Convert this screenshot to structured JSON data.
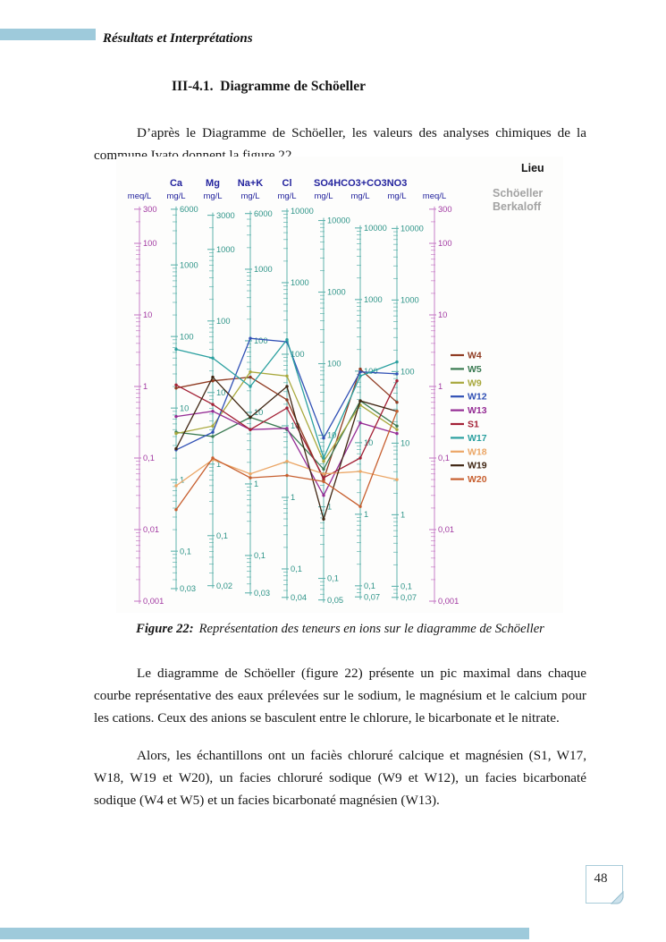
{
  "page": {
    "header_title": "Résultats et Interprétations",
    "section_heading": "III-4.1.  Diagramme de Schöeller",
    "para1": "D’après le Diagramme de Schöeller, les valeurs des analyses chimiques de la commune Ivato donnent la figure 22.",
    "caption_label": "Figure 22:",
    "caption_text": "Représentation des teneurs en ions sur le diagramme de Schöeller",
    "para2": "Le diagramme de Schöeller (figure 22) présente un pic maximal dans chaque courbe représentative des eaux prélevées sur le sodium, le magnésium et le calcium pour les cations. Ceux des anions se basculent entre le chlorure, le bicarbonate et le nitrate.",
    "para3": "Alors, les échantillons ont un faciès  chloruré calcique et magnésien (S1, W17, W18, W19 et W20), un facies chloruré sodique (W9 et W12), un facies bicarbonaté sodique (W4 et W5) et un facies bicarbonaté magnésien (W13).",
    "page_number": "48",
    "accent_color": "#9ecadb"
  },
  "chart_data": {
    "type": "line",
    "y_scale": "log",
    "title": "",
    "legend_title": "Lieu",
    "watermark_lines": [
      "Schöeller",
      "Berkaloff"
    ],
    "common_unit": "meq/L",
    "ylim_meq": [
      0.001,
      300
    ],
    "grid": false,
    "legend_position": "right",
    "colors": {
      "header": "#24249e",
      "ion_axis": "#5fb3ad",
      "tick_label": "#2e9488",
      "meq_axis": "#c77ec7",
      "meq_label": "#a23aa2",
      "legend_title": "#141414",
      "watermark": "#a3a3a3"
    },
    "axes": [
      {
        "header": "",
        "unit": "meq/L",
        "kind": "meq",
        "eq_weight": 1,
        "tick_values": [
          300,
          100,
          10,
          1,
          0.1,
          0.01,
          0.001
        ],
        "tick_labels": [
          "300",
          "100",
          "10",
          "1",
          "0,1",
          "0,01",
          "0,001"
        ]
      },
      {
        "header": "Ca",
        "unit": "mg/L",
        "kind": "ion",
        "eq_weight": 20.04,
        "tick_values": [
          6000,
          1000,
          100,
          10,
          1,
          0.1,
          0.03
        ],
        "tick_labels": [
          "6000",
          "1000",
          "100",
          "10",
          "1",
          "0,1",
          "0,03"
        ]
      },
      {
        "header": "Mg",
        "unit": "mg/L",
        "kind": "ion",
        "eq_weight": 12.15,
        "tick_values": [
          3000,
          1000,
          100,
          10,
          1,
          0.1,
          0.02
        ],
        "tick_labels": [
          "3000",
          "1000",
          "100",
          "10",
          "1",
          "0,1",
          "0,02"
        ]
      },
      {
        "header": "Na+K",
        "unit": "mg/L",
        "kind": "ion",
        "eq_weight": 23.0,
        "tick_values": [
          6000,
          1000,
          100,
          10,
          1,
          0.1,
          0.03
        ],
        "tick_labels": [
          "6000",
          "1000",
          "100",
          "10",
          "1",
          "0,1",
          "0,03"
        ]
      },
      {
        "header": "Cl",
        "unit": "mg/L",
        "kind": "ion",
        "eq_weight": 35.45,
        "tick_values": [
          10000,
          1000,
          100,
          10,
          1,
          0.1,
          0.04
        ],
        "tick_labels": [
          "10000",
          "1000",
          "100",
          "10",
          "1",
          "0,1",
          "0,04"
        ]
      },
      {
        "header": "SO4",
        "unit": "mg/L",
        "kind": "ion",
        "eq_weight": 48.03,
        "tick_values": [
          10000,
          1000,
          100,
          10,
          1,
          0.1,
          0.05
        ],
        "tick_labels": [
          "10000",
          "1000",
          "100",
          "10",
          "1",
          "0,1",
          "0,05"
        ]
      },
      {
        "header": "HCO3+CO3",
        "unit": "mg/L",
        "kind": "ion",
        "eq_weight": 61.02,
        "tick_values": [
          10000,
          1000,
          100,
          10,
          1,
          0.1,
          0.07
        ],
        "tick_labels": [
          "10000",
          "1000",
          "100",
          "10",
          "1",
          "0,1",
          "0,07"
        ]
      },
      {
        "header": "NO3",
        "unit": "mg/L",
        "kind": "ion",
        "eq_weight": 62.0,
        "tick_values": [
          10000,
          1000,
          100,
          10,
          1,
          0.1,
          0.07
        ],
        "tick_labels": [
          "10000",
          "1000",
          "100",
          "10",
          "1",
          "0,1",
          "0,07"
        ]
      },
      {
        "header": "",
        "unit": "meq/L",
        "kind": "meq",
        "eq_weight": 1,
        "tick_values": [
          300,
          100,
          10,
          1,
          0.1,
          0.01,
          0.001
        ],
        "tick_labels": [
          "300",
          "100",
          "10",
          "1",
          "0,1",
          "0,01",
          "0,001"
        ]
      }
    ],
    "ions": [
      "Ca",
      "Mg",
      "Na+K",
      "Cl",
      "SO4",
      "HCO3+CO3",
      "NO3"
    ],
    "series": [
      {
        "name": "W4",
        "color": "#8f3b22",
        "values_meq": [
          0.95,
          1.2,
          1.35,
          0.65,
          0.05,
          1.75,
          0.6
        ]
      },
      {
        "name": "W5",
        "color": "#3a7a52",
        "values_meq": [
          0.23,
          0.2,
          0.37,
          0.25,
          0.07,
          0.63,
          0.28
        ]
      },
      {
        "name": "W9",
        "color": "#a8a83c",
        "values_meq": [
          0.22,
          0.28,
          1.6,
          1.4,
          0.09,
          0.55,
          0.25
        ]
      },
      {
        "name": "W12",
        "color": "#3050b5",
        "values_meq": [
          0.13,
          0.23,
          4.7,
          4.2,
          0.19,
          1.6,
          1.5
        ]
      },
      {
        "name": "W13",
        "color": "#952d95",
        "values_meq": [
          0.38,
          0.45,
          0.25,
          0.26,
          0.03,
          0.31,
          0.22
        ]
      },
      {
        "name": "S1",
        "color": "#a32035",
        "values_meq": [
          1.05,
          0.56,
          0.25,
          0.5,
          0.053,
          0.1,
          1.2
        ]
      },
      {
        "name": "W17",
        "color": "#2ba0a0",
        "values_meq": [
          3.3,
          2.5,
          1.0,
          4.5,
          0.1,
          1.4,
          2.2
        ]
      },
      {
        "name": "W18",
        "color": "#eba666",
        "values_meq": [
          0.041,
          0.095,
          0.06,
          0.09,
          0.06,
          0.065,
          0.05
        ]
      },
      {
        "name": "W19",
        "color": "#3f2512",
        "values_meq": [
          0.135,
          1.35,
          0.37,
          1.0,
          0.014,
          0.63,
          0.45
        ]
      },
      {
        "name": "W20",
        "color": "#c75f2f",
        "values_meq": [
          0.019,
          0.1,
          0.053,
          0.057,
          0.047,
          0.021,
          0.45
        ]
      }
    ]
  }
}
